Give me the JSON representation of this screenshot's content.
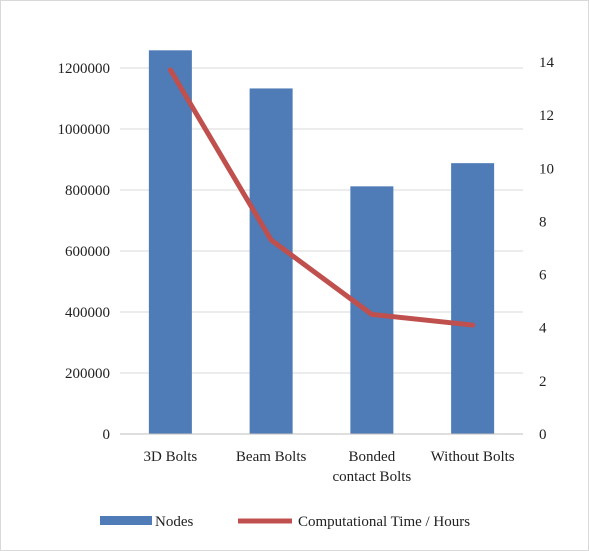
{
  "chart_data": {
    "type": "bar",
    "categories": [
      [
        "3D Bolts"
      ],
      [
        "Beam Bolts"
      ],
      [
        "Bonded",
        "contact Bolts"
      ],
      [
        "Without Bolts"
      ]
    ],
    "series": [
      {
        "name": "Nodes",
        "type": "bar",
        "axis": "left",
        "color": "#4f7bb7",
        "values": [
          1258000,
          1133000,
          812000,
          888000
        ]
      },
      {
        "name": "Computational Time / Hours",
        "type": "line",
        "axis": "right",
        "color": "#c0504d",
        "values": [
          13.7,
          7.3,
          4.5,
          4.1
        ]
      }
    ],
    "y_left": {
      "lim": [
        0,
        1200000
      ],
      "ticks": [
        0,
        200000,
        400000,
        600000,
        800000,
        1000000,
        1200000
      ],
      "tick_labels": [
        "0",
        "200000",
        "400000",
        "600000",
        "800000",
        "1000000",
        "1200000"
      ]
    },
    "y_right": {
      "lim": [
        0,
        14
      ],
      "ticks": [
        0,
        2,
        4,
        6,
        8,
        10,
        12,
        14
      ],
      "tick_labels": [
        "0",
        "2",
        "4",
        "6",
        "8",
        "10",
        "12",
        "14"
      ]
    },
    "grid": true,
    "legend": "bottom",
    "title": "",
    "xlabel": "",
    "ylabel": ""
  }
}
